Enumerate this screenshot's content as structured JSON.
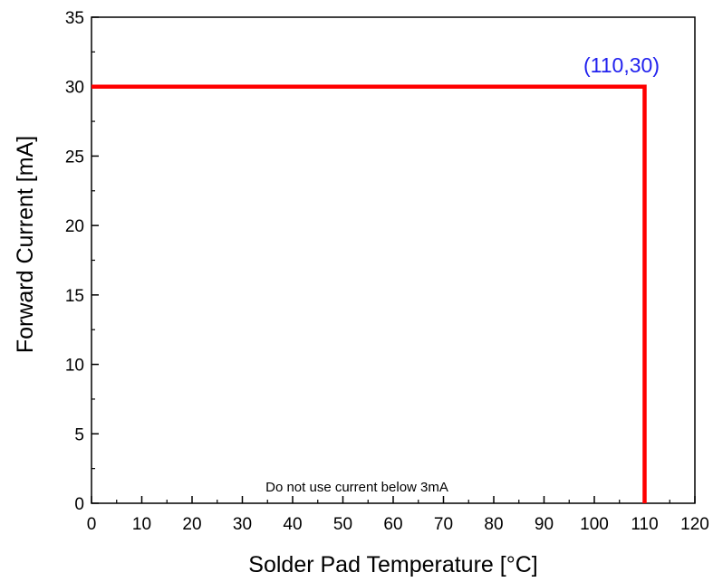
{
  "chart_data": {
    "type": "line",
    "title": "",
    "xlabel": "Solder Pad Temperature [°C]",
    "ylabel": "Forward Current [mA]",
    "xlim": [
      0,
      120
    ],
    "ylim": [
      0,
      35
    ],
    "x_ticks": [
      0,
      10,
      20,
      30,
      40,
      50,
      60,
      70,
      80,
      90,
      100,
      110,
      120
    ],
    "y_ticks": [
      0,
      5,
      10,
      15,
      20,
      25,
      30,
      35
    ],
    "grid": false,
    "legend": "none",
    "series": [
      {
        "color": "#ff0000",
        "x": [
          0,
          110,
          110
        ],
        "y": [
          30,
          30,
          0
        ]
      }
    ],
    "annotations": [
      {
        "text": "(110,30)",
        "color": "#2222ee"
      },
      {
        "text": "Do not use current below 3mA",
        "color": "#000000"
      }
    ]
  }
}
